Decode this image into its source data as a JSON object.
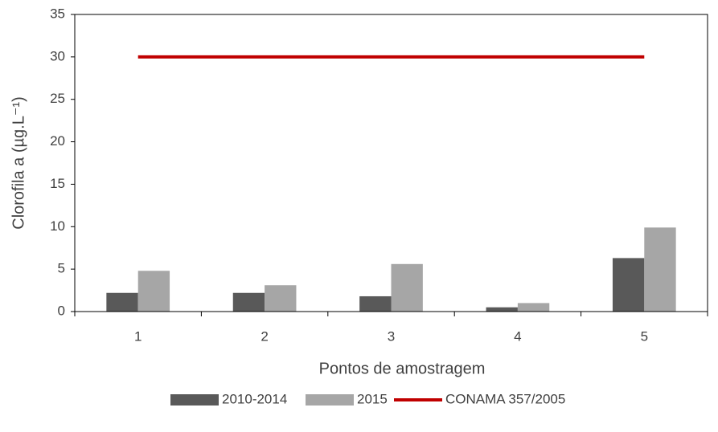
{
  "chart_data": {
    "type": "bar",
    "x_label": "Pontos de amostragem",
    "y_label": "Clorofila a (µg.L⁻¹)",
    "categories": [
      "1",
      "2",
      "3",
      "4",
      "5"
    ],
    "series": [
      {
        "name": "2010-2014",
        "color": "#595959",
        "values": [
          2.2,
          2.2,
          1.8,
          0.5,
          6.3
        ]
      },
      {
        "name": "2015",
        "color": "#a6a6a6",
        "values": [
          4.8,
          3.1,
          5.6,
          1.0,
          9.9
        ]
      },
      {
        "name": "CONAMA 357/2005",
        "color": "#c00000",
        "type": "line",
        "values": [
          30,
          30,
          30,
          30,
          30
        ]
      }
    ],
    "ylim": [
      0,
      35
    ],
    "yticks": [
      0,
      5,
      10,
      15,
      20,
      25,
      30,
      35
    ],
    "legend": "bottom"
  }
}
